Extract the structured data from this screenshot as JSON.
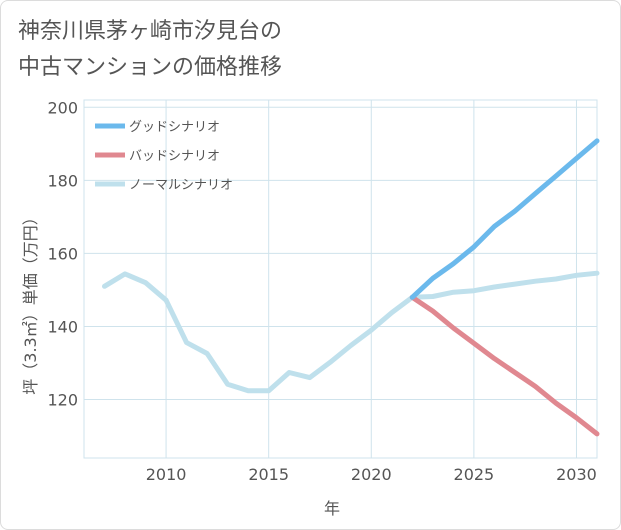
{
  "title_line1": "神奈川県茅ヶ崎市汐見台の",
  "title_line2": "中古マンションの価格推移",
  "chart_data": {
    "type": "line",
    "title": "神奈川県茅ヶ崎市汐見台の中古マンションの価格推移",
    "xlabel": "年",
    "ylabel": "坪（3.3㎡）単価（万円）",
    "xlim": [
      2006,
      2031
    ],
    "ylim": [
      104,
      202
    ],
    "xticks": [
      2010,
      2015,
      2020,
      2025,
      2030
    ],
    "yticks": [
      120,
      140,
      160,
      180,
      200
    ],
    "grid": true,
    "legend_position": "top-left",
    "series": [
      {
        "name": "グッドシナリオ",
        "color": "#6bb9ec",
        "x": [
          2022,
          2023,
          2024,
          2025,
          2026,
          2027,
          2028,
          2029,
          2030,
          2031
        ],
        "y": [
          148,
          153.2,
          157.2,
          161.8,
          167.4,
          171.6,
          176.4,
          181.2,
          186,
          190.8
        ]
      },
      {
        "name": "バッドシナリオ",
        "color": "#e08890",
        "x": [
          2022,
          2023,
          2024,
          2025,
          2026,
          2027,
          2028,
          2029,
          2030,
          2031
        ],
        "y": [
          148,
          144.2,
          139.6,
          135.4,
          131.2,
          127.4,
          123.6,
          119,
          115,
          110.6
        ]
      },
      {
        "name": "ノーマルシナリオ",
        "color": "#bfe0ec",
        "x": [
          2007,
          2008,
          2009,
          2010,
          2011,
          2012,
          2013,
          2014,
          2015,
          2016,
          2017,
          2018,
          2019,
          2020,
          2021,
          2022,
          2023,
          2024,
          2025,
          2026,
          2027,
          2028,
          2029,
          2030,
          2031
        ],
        "y": [
          151,
          154.4,
          152,
          147.2,
          135.6,
          132.6,
          124.2,
          122.4,
          122.4,
          127.4,
          126,
          130.2,
          134.8,
          139,
          143.8,
          148,
          148.2,
          149.4,
          149.8,
          150.8,
          151.6,
          152.4,
          153,
          154,
          154.6
        ]
      }
    ]
  }
}
